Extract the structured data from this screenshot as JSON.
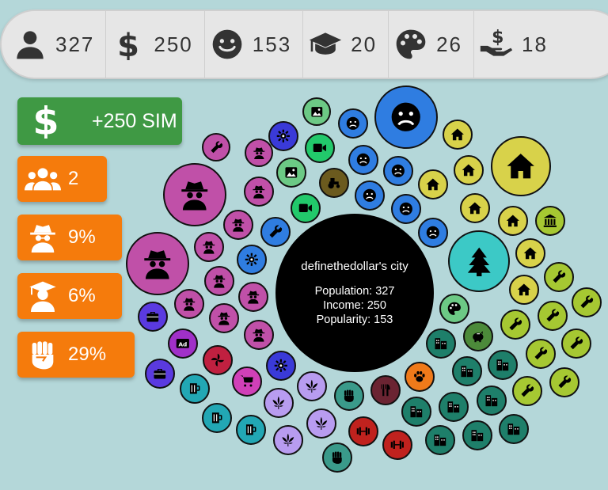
{
  "topbar": {
    "stats": [
      {
        "icon": "person-icon",
        "value": "327"
      },
      {
        "icon": "dollar-icon",
        "value": "250"
      },
      {
        "icon": "smiley-icon",
        "value": "153"
      },
      {
        "icon": "graduation-cap-icon",
        "value": "20"
      },
      {
        "icon": "palette-icon",
        "value": "26"
      },
      {
        "icon": "hand-money-icon",
        "value": "18"
      }
    ]
  },
  "side": {
    "money_label": "+250 SIM",
    "people_label": "2",
    "spy_label": "9%",
    "grad_label": "6%",
    "fist_label": "29%"
  },
  "city": {
    "name": "definethedollar's city",
    "population_line": "Population: 327",
    "income_line": "Income: 250",
    "popularity_line": "Popularity: 153"
  },
  "colors": {
    "background": "#b4d7d9",
    "topbar": "#e6e6e6",
    "money_button": "#3f9944",
    "stat_button": "#f57b0c",
    "spy": "#c050a8",
    "sad": "#2f7de1",
    "house": "#d8d24a",
    "park": "#3cc9c6",
    "wrench": "#a6c832",
    "office": "#1e7f6a",
    "gym": "#c0221e",
    "cannabis": "#b89cf0",
    "drink": "#22a7b4"
  }
}
